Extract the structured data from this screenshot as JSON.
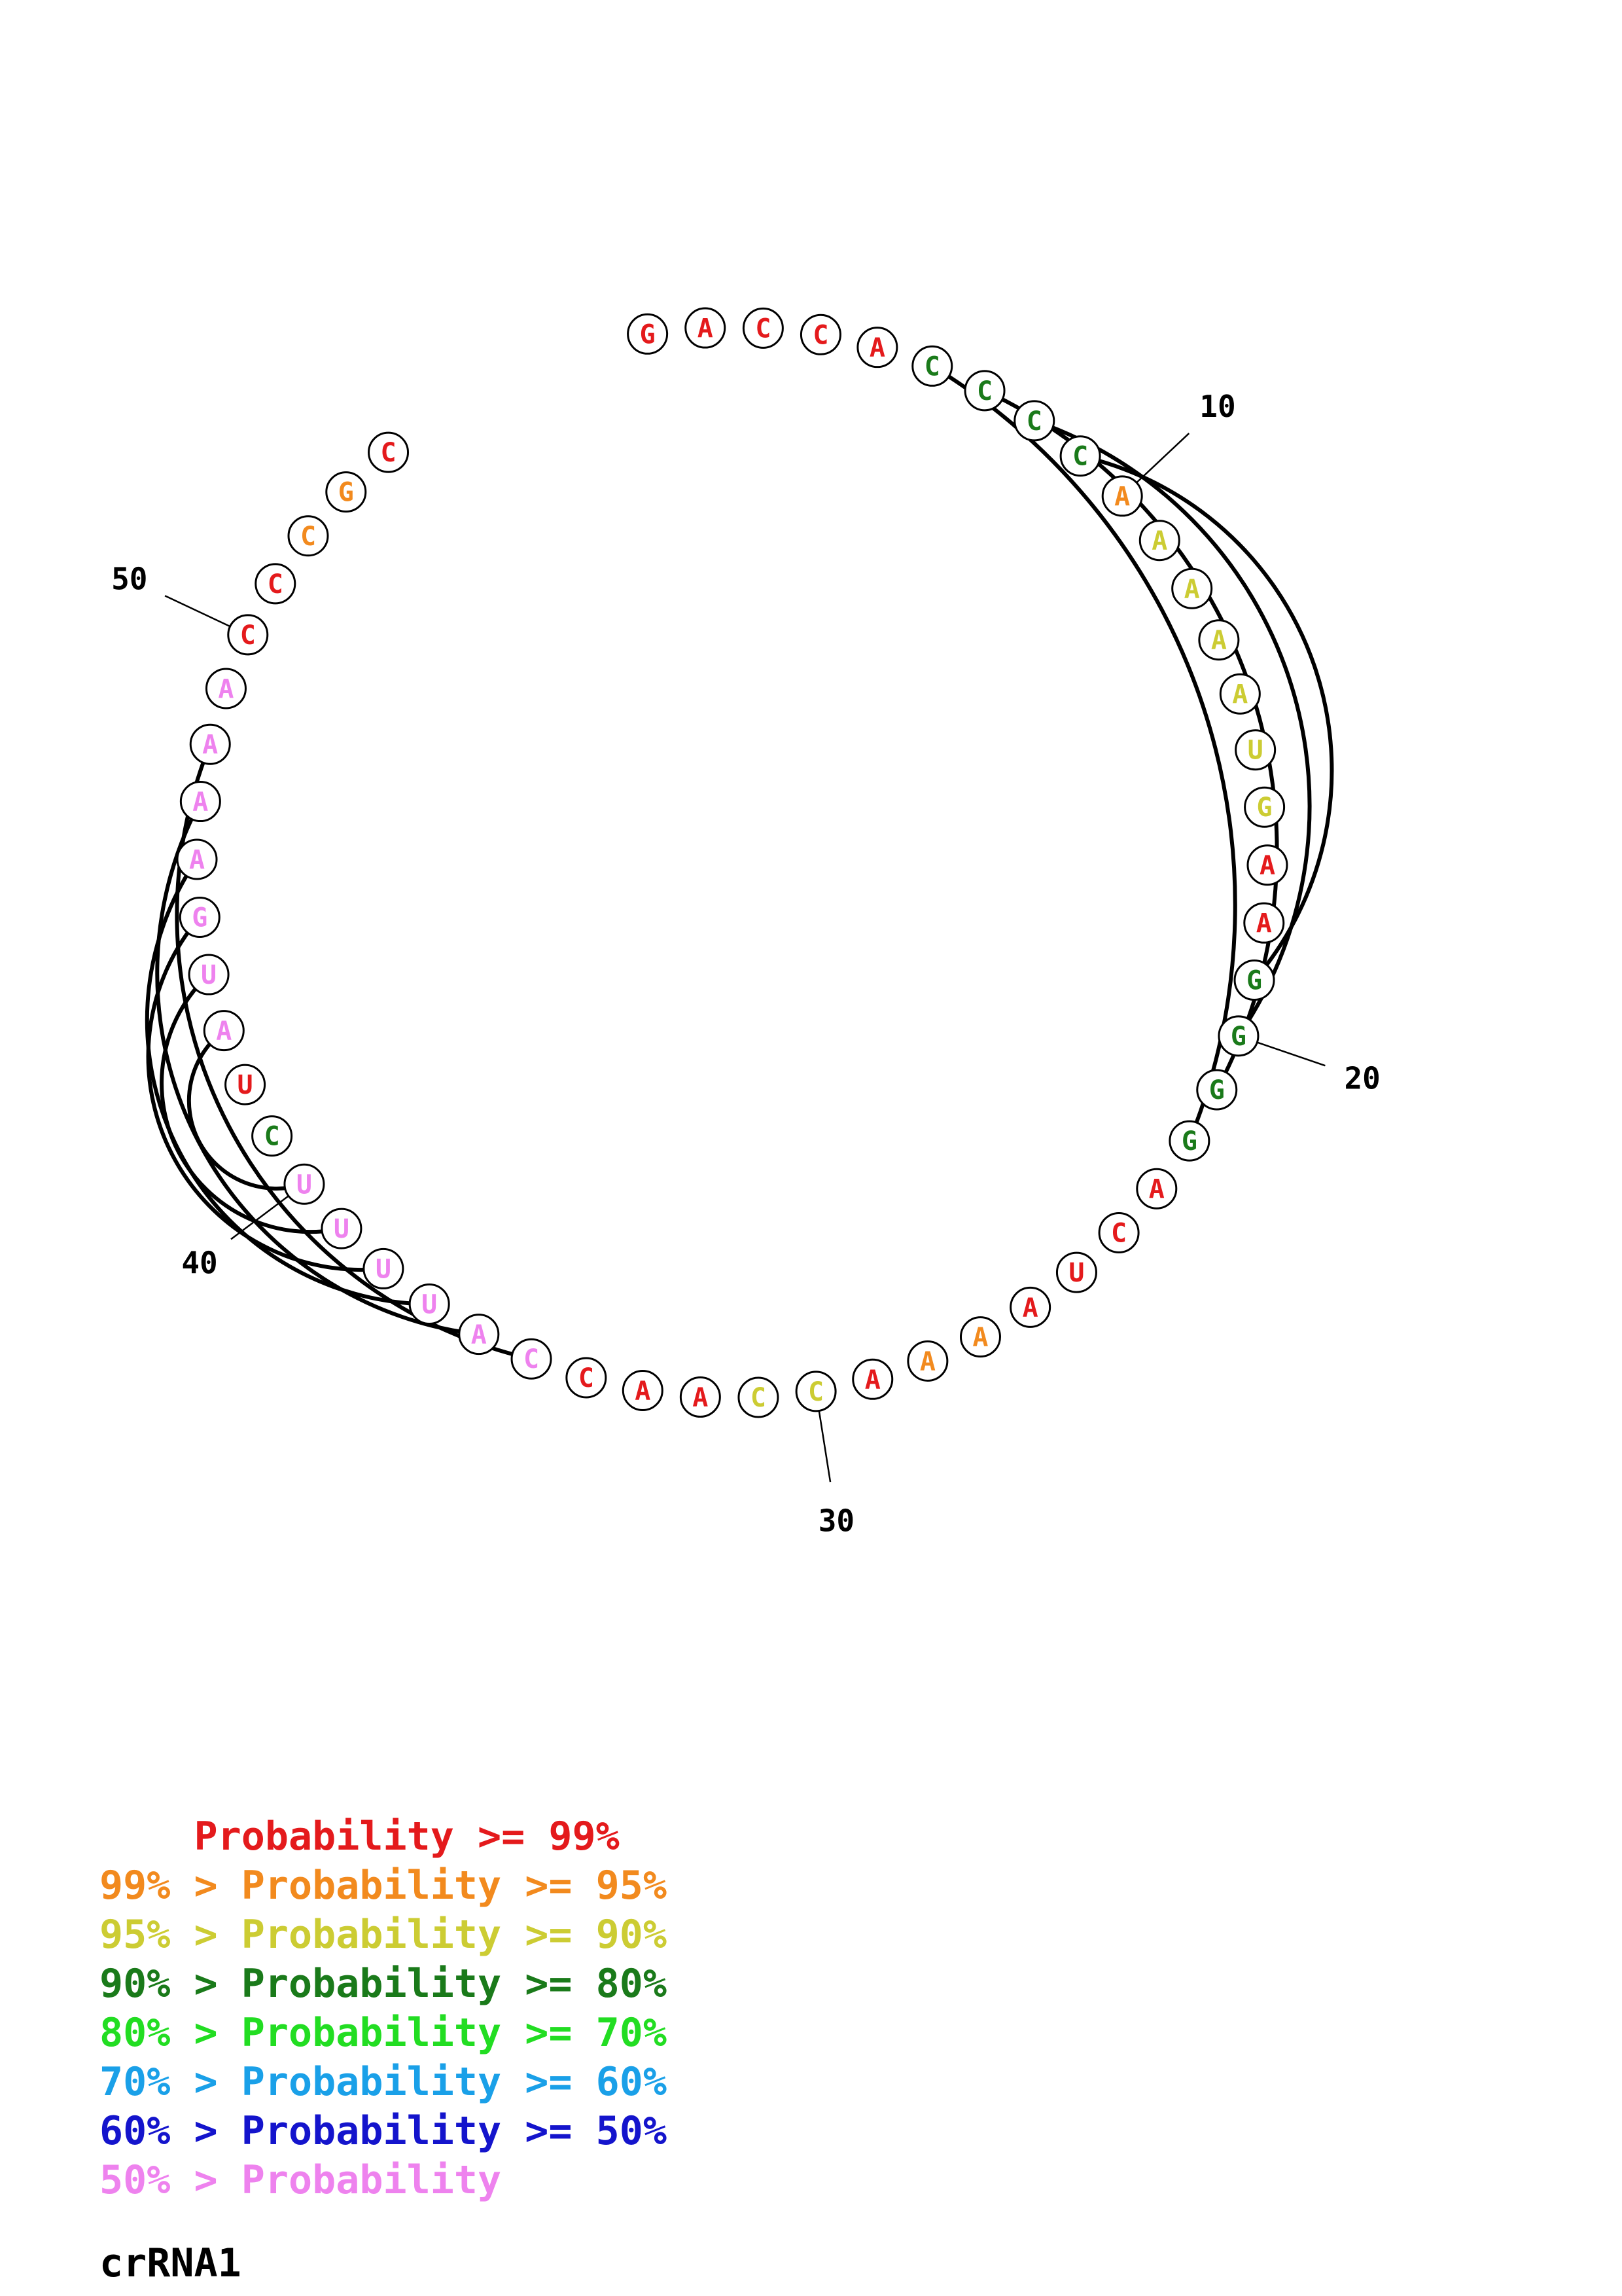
{
  "diagram": {
    "type": "rna-circle-plot",
    "title": "crRNA1",
    "sequence": [
      "G",
      "A",
      "C",
      "C",
      "A",
      "C",
      "C",
      "C",
      "C",
      "A",
      "A",
      "A",
      "A",
      "A",
      "U",
      "G",
      "A",
      "A",
      "G",
      "G",
      "G",
      "G",
      "A",
      "C",
      "U",
      "A",
      "A",
      "A",
      "A",
      "C",
      "C",
      "A",
      "A",
      "C",
      "C",
      "A",
      "U",
      "U",
      "U",
      "U",
      "C",
      "U",
      "A",
      "U",
      "G",
      "A",
      "A",
      "A",
      "A",
      "C",
      "C",
      "C",
      "G",
      "C"
    ],
    "probability_bins": [
      0,
      0,
      0,
      0,
      0,
      3,
      3,
      3,
      3,
      1,
      2,
      2,
      2,
      2,
      2,
      2,
      0,
      0,
      3,
      3,
      3,
      3,
      0,
      0,
      0,
      0,
      1,
      1,
      0,
      2,
      2,
      0,
      0,
      0,
      7,
      7,
      7,
      7,
      7,
      7,
      3,
      0,
      7,
      7,
      7,
      7,
      7,
      7,
      7,
      0,
      0,
      1,
      1,
      0
    ],
    "pairs": [
      [
        6,
        22
      ],
      [
        7,
        21
      ],
      [
        8,
        20
      ],
      [
        9,
        19
      ],
      [
        35,
        48
      ],
      [
        36,
        47
      ],
      [
        37,
        46
      ],
      [
        38,
        45
      ],
      [
        39,
        44
      ],
      [
        40,
        43
      ]
    ],
    "tick_marks": [
      {
        "index": 10,
        "label": "10"
      },
      {
        "index": 20,
        "label": "20"
      },
      {
        "index": 30,
        "label": "30"
      },
      {
        "index": 40,
        "label": "40"
      },
      {
        "index": 50,
        "label": "50"
      }
    ]
  },
  "legend": [
    {
      "prefix": "    ",
      "mid": "Probability",
      "suffix": " >= 99%",
      "color": "#e41a1c"
    },
    {
      "prefix": "99% > ",
      "mid": "Probability",
      "suffix": " >= 95%",
      "color": "#f28a1e"
    },
    {
      "prefix": "95% > ",
      "mid": "Probability",
      "suffix": " >= 90%",
      "color": "#cccc33"
    },
    {
      "prefix": "90% > ",
      "mid": "Probability",
      "suffix": " >= 80%",
      "color": "#1a7a1a"
    },
    {
      "prefix": "80% > ",
      "mid": "Probability",
      "suffix": " >= 70%",
      "color": "#22dd22"
    },
    {
      "prefix": "70% > ",
      "mid": "Probability",
      "suffix": " >= 60%",
      "color": "#1aa0e8"
    },
    {
      "prefix": "60% > ",
      "mid": "Probability",
      "suffix": " >= 50%",
      "color": "#1414cc"
    },
    {
      "prefix": "50% > ",
      "mid": "Probability",
      "suffix": "",
      "color": "#ee82ee"
    }
  ]
}
